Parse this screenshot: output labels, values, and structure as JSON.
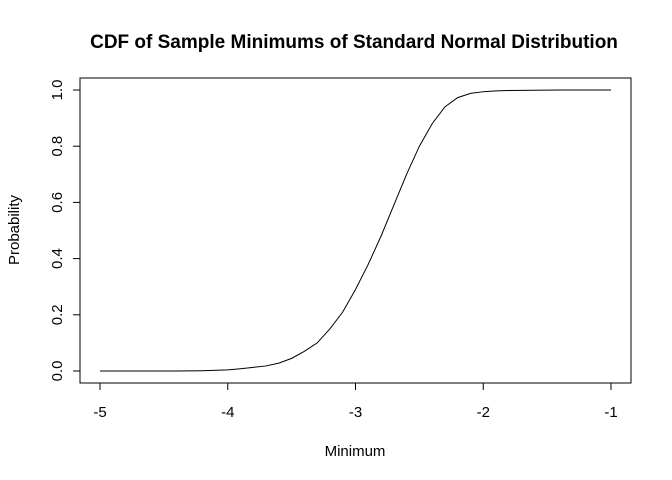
{
  "chart_data": {
    "type": "line",
    "title": "CDF of Sample Minimums of Standard Normal Distribution",
    "xlabel": "Minimum",
    "ylabel": "Probability",
    "xlim": [
      -5,
      -1
    ],
    "ylim": [
      0,
      1
    ],
    "x_ticks": [
      -5,
      -4,
      -3,
      -2,
      -1
    ],
    "x_tick_labels": [
      "-5",
      "-4",
      "-3",
      "-2",
      "-1"
    ],
    "y_ticks": [
      0,
      0.2,
      0.4,
      0.6,
      0.8,
      1
    ],
    "y_tick_labels": [
      "0.0",
      "0.2",
      "0.4",
      "0.6",
      "0.8",
      "1.0"
    ],
    "grid": false,
    "line_color": "#000000",
    "series": [
      {
        "x": [
          -5.0,
          -4.8,
          -4.6,
          -4.4,
          -4.2,
          -4.0,
          -3.9,
          -3.8,
          -3.7,
          -3.6,
          -3.5,
          -3.4,
          -3.3,
          -3.2,
          -3.1,
          -3.0,
          -2.9,
          -2.8,
          -2.7,
          -2.6,
          -2.5,
          -2.4,
          -2.3,
          -2.2,
          -2.1,
          -2.0,
          -1.9,
          -1.8,
          -1.6,
          -1.4,
          -1.2,
          -1.0
        ],
        "y": [
          0.0,
          0.0,
          0.0,
          0.0,
          0.001,
          0.004,
          0.008,
          0.013,
          0.018,
          0.028,
          0.045,
          0.07,
          0.1,
          0.15,
          0.21,
          0.29,
          0.38,
          0.48,
          0.59,
          0.7,
          0.8,
          0.88,
          0.94,
          0.973,
          0.988,
          0.994,
          0.997,
          0.998,
          0.999,
          1.0,
          1.0,
          1.0
        ]
      }
    ]
  }
}
